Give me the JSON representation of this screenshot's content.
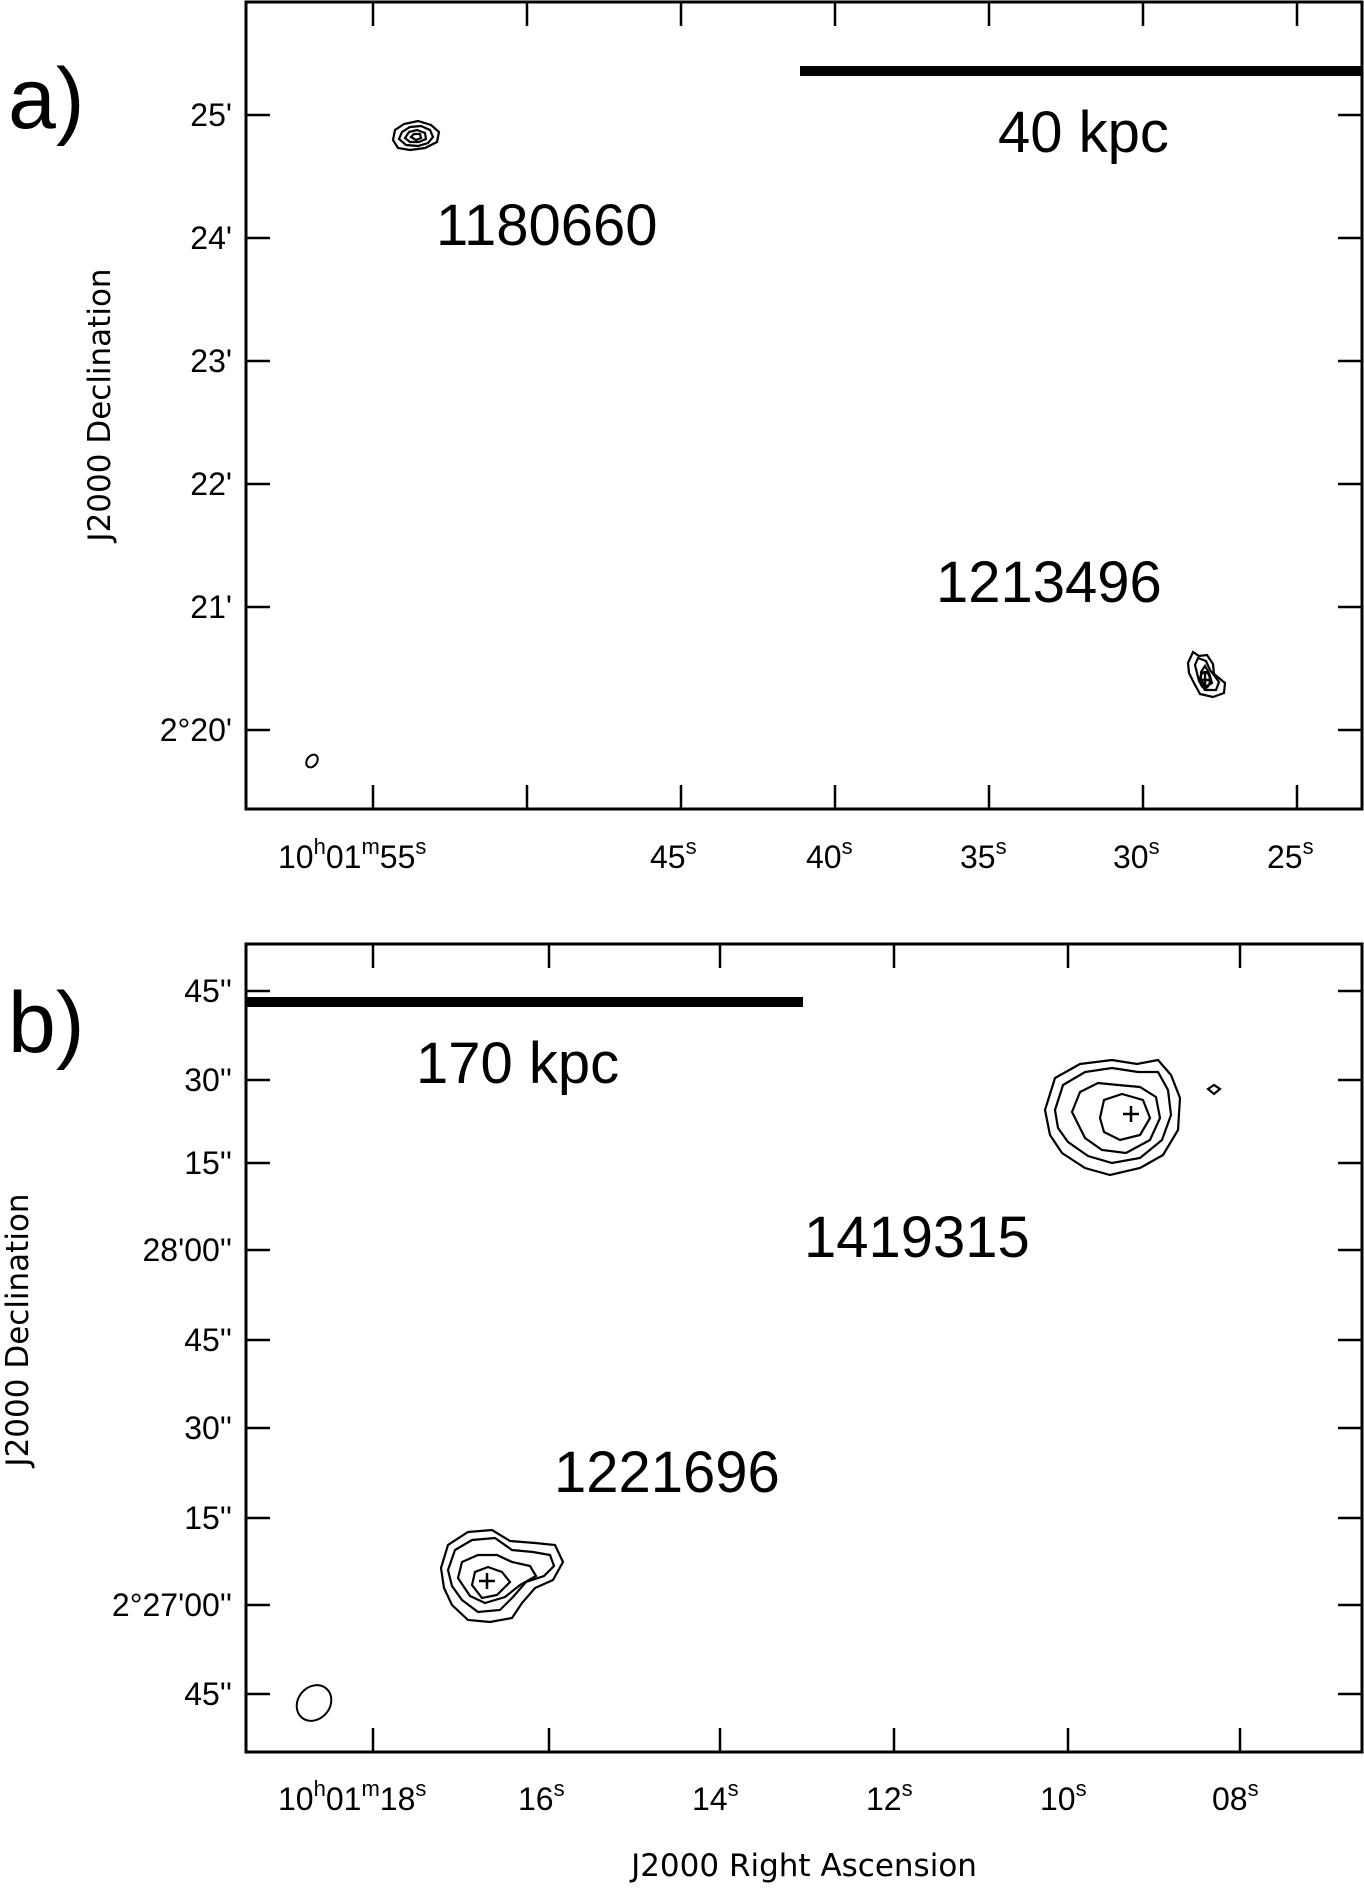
{
  "panels": [
    {
      "id": "a",
      "label": "a)",
      "ylabel": "J2000 Declination",
      "y_ticks": [
        "25'",
        "24'",
        "23'",
        "22'",
        "21'",
        "2°20'"
      ],
      "x_ticks": [
        {
          "h": "10",
          "m": "01",
          "s": "55"
        },
        {
          "s": "45"
        },
        {
          "s": "40"
        },
        {
          "s": "35"
        },
        {
          "s": "30"
        },
        {
          "s": "25"
        }
      ],
      "scale_bar": "40 kpc",
      "sources": [
        {
          "name": "1180660"
        },
        {
          "name": "1213496"
        }
      ]
    },
    {
      "id": "b",
      "label": "b)",
      "ylabel": "J2000 Declination",
      "xlabel": "J2000 Right Ascension",
      "y_ticks": [
        "45''",
        "30''",
        "15''",
        "28'00''",
        "45''",
        "30''",
        "15''",
        "2°27'00''",
        "45''"
      ],
      "x_ticks": [
        {
          "h": "10",
          "m": "01",
          "s": "18"
        },
        {
          "s": "16"
        },
        {
          "s": "14"
        },
        {
          "s": "12"
        },
        {
          "s": "10"
        },
        {
          "s": "08"
        }
      ],
      "scale_bar": "170 kpc",
      "sources": [
        {
          "name": "1419315"
        },
        {
          "name": "1221696"
        }
      ]
    }
  ]
}
